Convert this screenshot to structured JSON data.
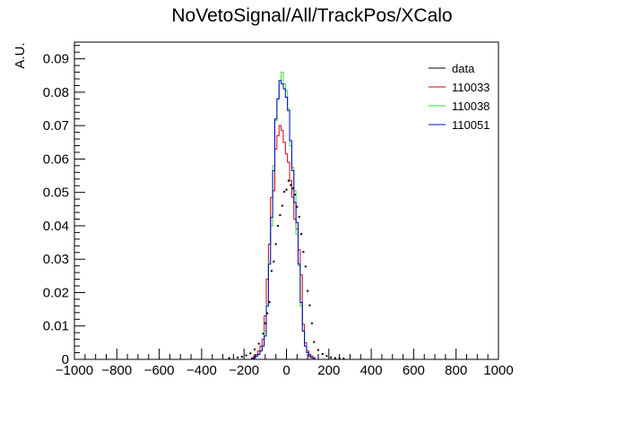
{
  "chart_data": {
    "type": "line",
    "title": "NoVetoSignal/All/TrackPos/XCalo",
    "xlabel": "",
    "ylabel": "A.U.",
    "xlim": [
      -1000,
      1000
    ],
    "ylim": [
      0,
      0.095
    ],
    "x_ticks": [
      -1000,
      -800,
      -600,
      -400,
      -200,
      0,
      200,
      400,
      600,
      800,
      1000
    ],
    "x_tick_labels": [
      "−1000",
      "−800",
      "−600",
      "−400",
      "−200",
      "0",
      "200",
      "400",
      "600",
      "800",
      "1000"
    ],
    "y_ticks": [
      0,
      0.01,
      0.02,
      0.03,
      0.04,
      0.05,
      0.06,
      0.07,
      0.08,
      0.09
    ],
    "y_tick_labels": [
      "0",
      "0.01",
      "0.02",
      "0.03",
      "0.04",
      "0.05",
      "0.06",
      "0.07",
      "0.08",
      "0.09"
    ],
    "bin_width": 10,
    "legend_position": "top-right",
    "series": [
      {
        "name": "data",
        "style": "points",
        "color": "#000000",
        "x": [
          -270,
          -230,
          -210,
          -190,
          -170,
          -150,
          -130,
          -110,
          -100,
          -90,
          -80,
          -70,
          -60,
          -50,
          -40,
          -30,
          -20,
          -10,
          0,
          10,
          20,
          30,
          40,
          50,
          60,
          70,
          80,
          90,
          100,
          110,
          120,
          130,
          150,
          170,
          190,
          210,
          230,
          250,
          270
        ],
        "values": [
          0.0004,
          0.0006,
          0.0008,
          0.0012,
          0.0018,
          0.003,
          0.0047,
          0.0077,
          0.0108,
          0.0138,
          0.0172,
          0.0265,
          0.0293,
          0.0345,
          0.04,
          0.0432,
          0.046,
          0.0502,
          0.0508,
          0.0535,
          0.0522,
          0.0512,
          0.0493,
          0.0457,
          0.0427,
          0.0375,
          0.0322,
          0.0278,
          0.0205,
          0.0162,
          0.0108,
          0.0052,
          0.0028,
          0.0016,
          0.001,
          0.0006,
          0.0004,
          0.0003,
          0.0002
        ]
      },
      {
        "name": "110033",
        "style": "step",
        "color": "#cc0000",
        "x": [
          -160,
          -150,
          -140,
          -130,
          -120,
          -110,
          -100,
          -90,
          -80,
          -70,
          -60,
          -50,
          -40,
          -30,
          -20,
          -10,
          0,
          10,
          20,
          30,
          40,
          50,
          60,
          70,
          80,
          90,
          100,
          110,
          120,
          130,
          140
        ],
        "values": [
          0.0005,
          0.001,
          0.0015,
          0.0025,
          0.004,
          0.006,
          0.013,
          0.024,
          0.0345,
          0.0485,
          0.0505,
          0.063,
          0.067,
          0.07,
          0.0685,
          0.065,
          0.0615,
          0.059,
          0.0535,
          0.0485,
          0.042,
          0.039,
          0.0328,
          0.0253,
          0.0105,
          0.005,
          0.0025,
          0.0015,
          0.001,
          0.0005,
          0
        ]
      },
      {
        "name": "110038",
        "style": "step",
        "color": "#33dd33",
        "x": [
          -160,
          -150,
          -140,
          -130,
          -120,
          -110,
          -100,
          -90,
          -80,
          -70,
          -60,
          -50,
          -40,
          -30,
          -20,
          -10,
          0,
          10,
          20,
          30,
          40,
          50,
          60,
          70,
          80,
          90,
          100,
          110,
          120,
          130,
          140
        ],
        "values": [
          0.0002,
          0.0005,
          0.001,
          0.0015,
          0.0025,
          0.004,
          0.0085,
          0.0165,
          0.029,
          0.04,
          0.058,
          0.0715,
          0.078,
          0.0835,
          0.086,
          0.0825,
          0.0805,
          0.075,
          0.064,
          0.0575,
          0.0505,
          0.0375,
          0.028,
          0.016,
          0.0085,
          0.004,
          0.002,
          0.001,
          0.0005,
          0.0002,
          0
        ]
      },
      {
        "name": "110051",
        "style": "step",
        "color": "#0000cc",
        "x": [
          -160,
          -150,
          -140,
          -130,
          -120,
          -110,
          -100,
          -90,
          -80,
          -70,
          -60,
          -50,
          -40,
          -30,
          -20,
          -10,
          0,
          10,
          20,
          30,
          40,
          50,
          60,
          70,
          80,
          90,
          100,
          110,
          120,
          130,
          140
        ],
        "values": [
          0.0002,
          0.0005,
          0.001,
          0.0015,
          0.0025,
          0.004,
          0.007,
          0.016,
          0.0285,
          0.0425,
          0.0565,
          0.072,
          0.078,
          0.0835,
          0.0825,
          0.081,
          0.0785,
          0.0745,
          0.0655,
          0.0565,
          0.047,
          0.041,
          0.0285,
          0.017,
          0.0085,
          0.004,
          0.002,
          0.001,
          0.0005,
          0.0002,
          0
        ]
      }
    ]
  }
}
